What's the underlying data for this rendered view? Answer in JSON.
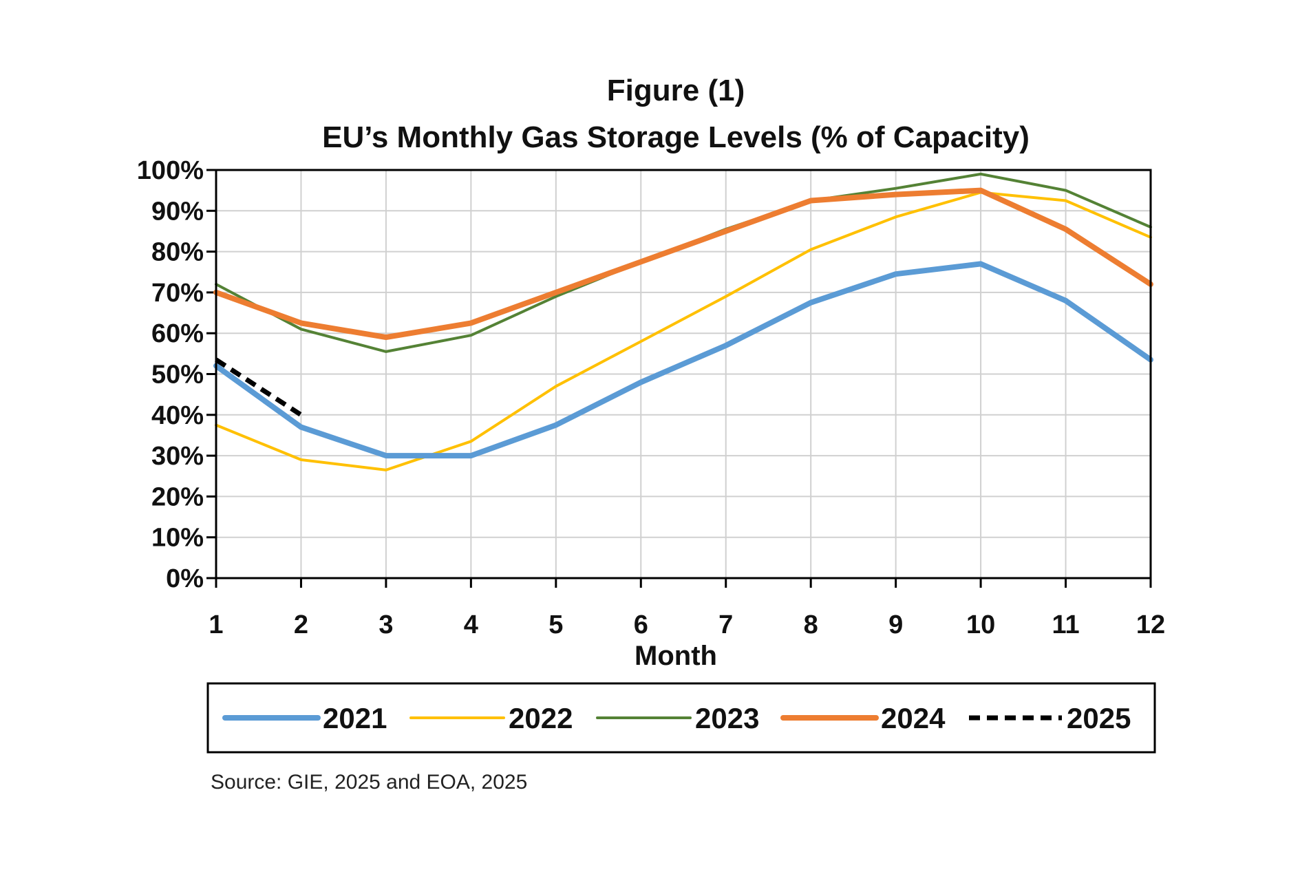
{
  "chart_data": {
    "type": "line",
    "title": "Figure (1)",
    "subtitle": "EU’s Monthly Gas Storage Levels (% of Capacity)",
    "xlabel": "Month",
    "ylabel": "",
    "x": [
      1,
      2,
      3,
      4,
      5,
      6,
      7,
      8,
      9,
      10,
      11,
      12
    ],
    "xlim": [
      1,
      12
    ],
    "ylim": [
      0,
      100
    ],
    "y_ticks": [
      "0%",
      "10%",
      "20%",
      "30%",
      "40%",
      "50%",
      "60%",
      "70%",
      "80%",
      "90%",
      "100%"
    ],
    "x_ticks": [
      "1",
      "2",
      "3",
      "4",
      "5",
      "6",
      "7",
      "8",
      "9",
      "10",
      "11",
      "12"
    ],
    "grid": true,
    "legend_position": "bottom",
    "series": [
      {
        "name": "2021",
        "color": "#5b9bd5",
        "style": "solid-thick",
        "x": [
          1,
          2,
          3,
          4,
          5,
          6,
          7,
          8,
          9,
          10,
          11,
          12
        ],
        "values": [
          52,
          37,
          30,
          30,
          37.5,
          48,
          57,
          67.5,
          74.5,
          77,
          68,
          53.5
        ]
      },
      {
        "name": "2022",
        "color": "#ffc000",
        "style": "solid-thin",
        "x": [
          1,
          2,
          3,
          4,
          5,
          6,
          7,
          8,
          9,
          10,
          11,
          12
        ],
        "values": [
          37.5,
          29,
          26.5,
          33.5,
          47,
          58,
          69,
          80.5,
          88.5,
          94.5,
          92.5,
          83.5
        ]
      },
      {
        "name": "2023",
        "color": "#548235",
        "style": "solid-thin",
        "x": [
          1,
          2,
          3,
          4,
          5,
          6,
          7,
          8,
          9,
          10,
          11,
          12
        ],
        "values": [
          72,
          61,
          55.5,
          59.5,
          69,
          77.5,
          85.5,
          92.5,
          95.5,
          99,
          95,
          86
        ]
      },
      {
        "name": "2024",
        "color": "#ed7d31",
        "style": "solid-thick",
        "x": [
          1,
          2,
          3,
          4,
          5,
          6,
          7,
          8,
          9,
          10,
          11,
          12
        ],
        "values": [
          70,
          62.5,
          59,
          62.5,
          70,
          77.5,
          85,
          92.5,
          94,
          95,
          85.5,
          72
        ]
      },
      {
        "name": "2025",
        "color": "#000000",
        "style": "dashed",
        "x": [
          1,
          2
        ],
        "values": [
          53.5,
          40
        ]
      }
    ]
  },
  "source": "Source: GIE, 2025 and  EOA, 2025"
}
